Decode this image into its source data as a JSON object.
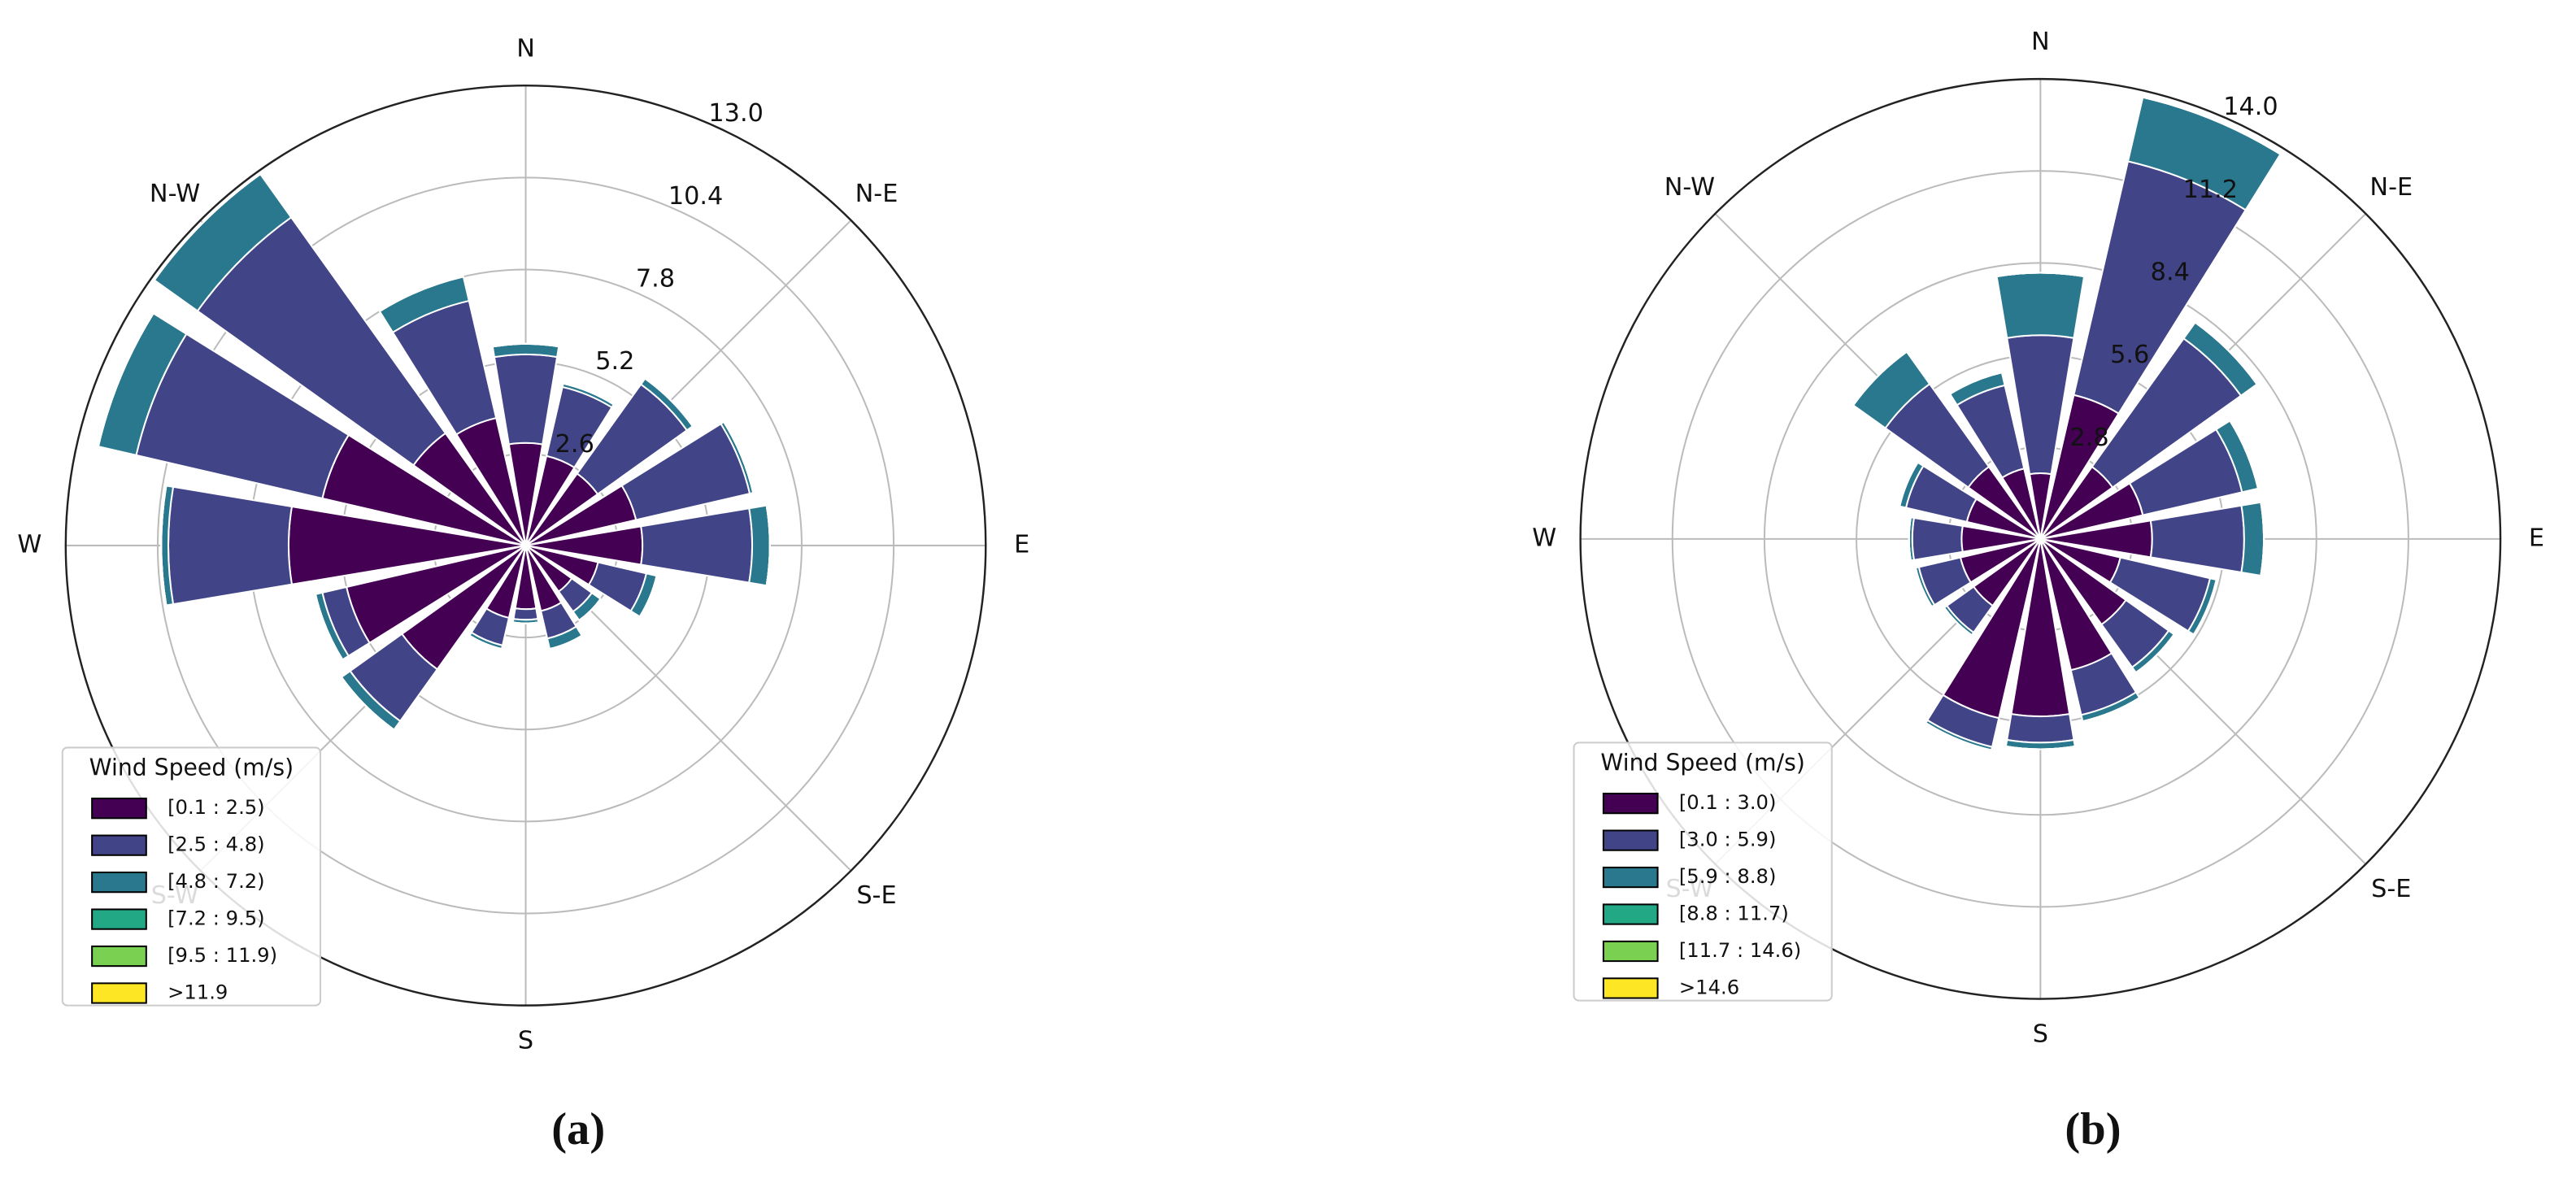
{
  "chart_data": [
    {
      "type": "windrose",
      "caption": "(a)",
      "legend_title": "Wind Speed (m/s)",
      "legend": "lower left",
      "grid": true,
      "categories": [
        "N",
        null,
        "N-E",
        null,
        "E",
        null,
        "S-E",
        null,
        "S",
        null,
        "S-W",
        null,
        "W",
        null,
        "N-W",
        null
      ],
      "ylim": [
        0,
        13.0
      ],
      "yticks": [
        2.6,
        5.2,
        7.8,
        10.4,
        {
          "value": 13.0,
          "label": "13.0"
        }
      ],
      "series": [
        {
          "name": "[0.1 : 2.5)",
          "color": "#440154",
          "values": [
            2.9,
            2.6,
            2.5,
            3.2,
            3.3,
            2.1,
            1.6,
            1.9,
            1.8,
            2.1,
            4.3,
            5.2,
            6.7,
            5.9,
            3.9,
            3.7
          ]
        },
        {
          "name": "[2.5 : 4.8)",
          "color": "#414487",
          "values": [
            2.5,
            2.0,
            3.1,
            3.3,
            3.1,
            1.4,
            0.7,
            0.8,
            0.3,
            0.8,
            1.8,
            0.7,
            3.4,
            5.4,
            7.5,
            3.4
          ]
        },
        {
          "name": "[4.8 : 7.2)",
          "color": "#2a788e",
          "values": [
            0.3,
            0.1,
            0.2,
            0.1,
            0.5,
            0.3,
            0.3,
            0.3,
            0.1,
            0.1,
            0.3,
            0.2,
            0.2,
            1.1,
            1.5,
            0.7
          ]
        },
        {
          "name": "[7.2 : 9.5)",
          "color": "#22a884",
          "values": [
            0,
            0,
            0,
            0,
            0,
            0,
            0,
            0,
            0,
            0,
            0,
            0,
            0,
            0,
            0,
            0
          ]
        },
        {
          "name": "[9.5 : 11.9)",
          "color": "#7ad151",
          "values": [
            0,
            0,
            0,
            0,
            0,
            0,
            0,
            0,
            0,
            0,
            0,
            0,
            0,
            0,
            0,
            0
          ]
        },
        {
          "name": ">11.9",
          "color": "#fde725",
          "values": [
            0,
            0,
            0,
            0,
            0,
            0,
            0,
            0,
            0,
            0,
            0,
            0,
            0,
            0,
            0,
            0
          ]
        }
      ]
    },
    {
      "type": "windrose",
      "caption": "(b)",
      "legend_title": "Wind Speed (m/s)",
      "legend": "lower left",
      "grid": true,
      "categories": [
        "N",
        null,
        "N-E",
        null,
        "E",
        null,
        "S-E",
        null,
        "S",
        null,
        "S-W",
        null,
        "W",
        null,
        "N-W",
        null
      ],
      "ylim": [
        0,
        14.0
      ],
      "yticks": [
        2.8,
        5.6,
        8.4,
        11.2,
        {
          "value": 14.0,
          "label": "14.0"
        }
      ],
      "series": [
        {
          "name": "[0.1 : 3.0)",
          "color": "#440154",
          "values": [
            2.0,
            4.5,
            2.7,
            3.2,
            3.4,
            2.5,
            3.2,
            4.1,
            5.4,
            5.6,
            2.5,
            2.5,
            2.4,
            2.3,
            2.7,
            2.2
          ]
        },
        {
          "name": "[3.0 : 5.9)",
          "color": "#414487",
          "values": [
            4.2,
            7.3,
            4.8,
            3.1,
            2.8,
            2.8,
            1.6,
            1.4,
            0.8,
            0.9,
            1.0,
            1.3,
            1.5,
            1.9,
            3.1,
            2.6
          ]
        },
        {
          "name": "[5.9 : 8.8)",
          "color": "#2a788e",
          "values": [
            1.9,
            2.0,
            0.6,
            0.5,
            0.6,
            0.2,
            0.2,
            0.2,
            0.2,
            0.1,
            0.1,
            0.1,
            0.1,
            0.2,
            1.2,
            0.4
          ]
        },
        {
          "name": "[8.8 : 11.7)",
          "color": "#22a884",
          "values": [
            0,
            0,
            0,
            0,
            0,
            0,
            0,
            0,
            0,
            0,
            0,
            0,
            0,
            0,
            0,
            0
          ]
        },
        {
          "name": "[11.7 : 14.6)",
          "color": "#7ad151",
          "values": [
            0,
            0,
            0,
            0,
            0,
            0,
            0,
            0,
            0,
            0,
            0,
            0,
            0,
            0,
            0,
            0
          ]
        },
        {
          "name": ">14.6",
          "color": "#fde725",
          "values": [
            0,
            0,
            0,
            0,
            0,
            0,
            0,
            0,
            0,
            0,
            0,
            0,
            0,
            0,
            0,
            0
          ]
        }
      ]
    }
  ]
}
